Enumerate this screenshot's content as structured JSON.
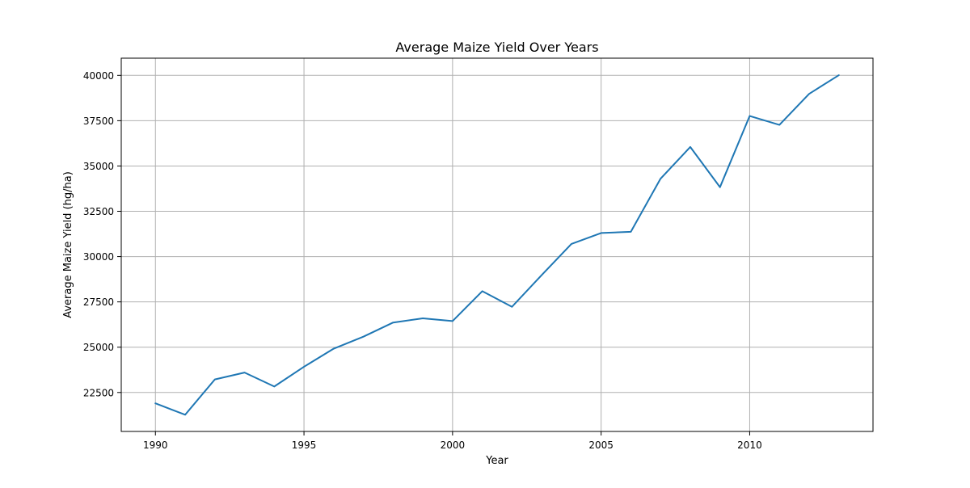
{
  "chart_data": {
    "type": "line",
    "title": "Average Maize Yield Over Years",
    "xlabel": "Year",
    "ylabel": "Average Maize Yield (hg/ha)",
    "xlim": [
      1988.85,
      2014.15
    ],
    "ylim": [
      20350,
      40950
    ],
    "grid": true,
    "xticks": [
      1990,
      1995,
      2000,
      2005,
      2010
    ],
    "yticks": [
      22500,
      25000,
      27500,
      30000,
      32500,
      35000,
      37500,
      40000
    ],
    "x": [
      1990,
      1991,
      1992,
      1993,
      1994,
      1995,
      1996,
      1997,
      1998,
      1999,
      2000,
      2001,
      2002,
      2003,
      2004,
      2005,
      2006,
      2007,
      2008,
      2009,
      2010,
      2011,
      2012,
      2013
    ],
    "series": [
      {
        "color": "#1f77b4",
        "values": [
          21900,
          21270,
          23220,
          23600,
          22830,
          23920,
          24920,
          25580,
          26360,
          26590,
          26440,
          28090,
          27230,
          28980,
          30700,
          31300,
          31370,
          34300,
          36050,
          33830,
          37760,
          37270,
          38980,
          40010
        ]
      }
    ]
  }
}
